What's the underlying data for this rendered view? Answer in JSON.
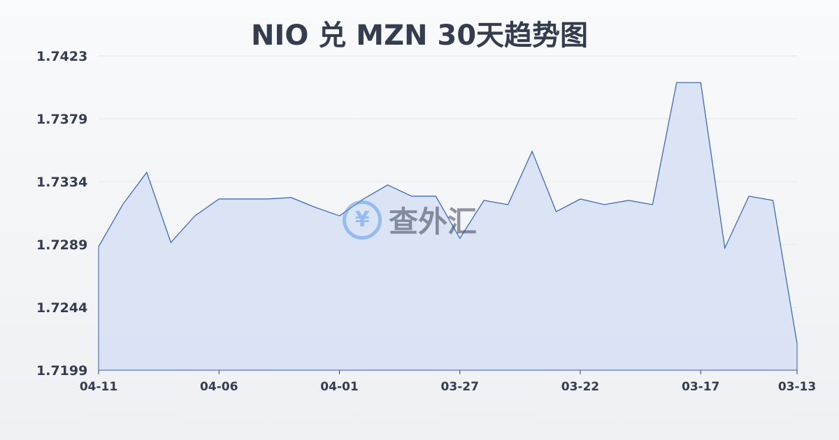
{
  "title": "NIO 兑 MZN 30天趋势图",
  "watermark": {
    "text": "查外汇",
    "icon": "yen-exchange-icon"
  },
  "chart_data": {
    "type": "area",
    "title": "NIO 兑 MZN 30天趋势图",
    "xlabel": "",
    "ylabel": "",
    "ylim": [
      1.7199,
      1.7423
    ],
    "yticks": [
      "1.7423",
      "1.7379",
      "1.7334",
      "1.7289",
      "1.7244",
      "1.7199"
    ],
    "xticks": [
      "04-11",
      "04-06",
      "04-01",
      "03-27",
      "03-22",
      "03-17",
      "03-13"
    ],
    "grid": true,
    "colors": {
      "line": "#2f5fc8",
      "fill": "#d6e1f5"
    },
    "x": [
      "04-11",
      "04-10",
      "04-09",
      "04-08",
      "04-07",
      "04-06",
      "04-05",
      "04-04",
      "04-03",
      "04-02",
      "04-01",
      "03-31",
      "03-30",
      "03-29",
      "03-28",
      "03-27",
      "03-26",
      "03-25",
      "03-24",
      "03-23",
      "03-22",
      "03-21",
      "03-20",
      "03-19",
      "03-18",
      "03-17",
      "03-16",
      "03-15",
      "03-14",
      "03-13"
    ],
    "values": [
      1.7287,
      1.7317,
      1.734,
      1.729,
      1.7309,
      1.7321,
      1.7321,
      1.7321,
      1.7322,
      1.7315,
      1.7309,
      1.7321,
      1.7331,
      1.7323,
      1.7323,
      1.7293,
      1.732,
      1.7317,
      1.7355,
      1.7312,
      1.7321,
      1.7317,
      1.732,
      1.7317,
      1.7404,
      1.7404,
      1.7286,
      1.7323,
      1.732,
      1.7218
    ]
  }
}
